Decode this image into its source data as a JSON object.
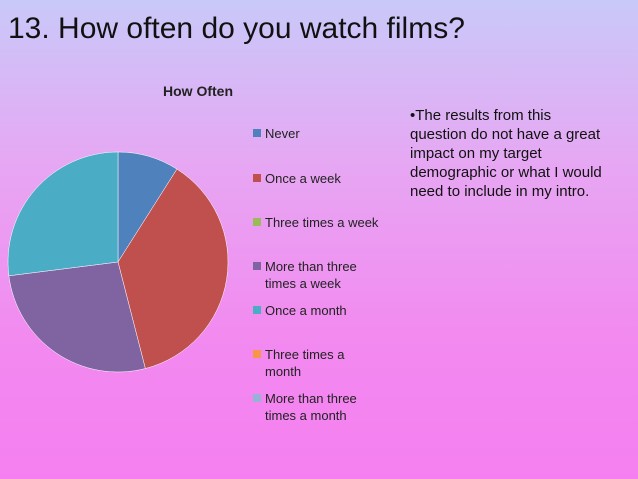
{
  "slide_title": "13. How often do you watch films?",
  "note": "•The results from this question do not have a great impact on my target demographic or what I would need to include in my intro.",
  "chart_data": {
    "type": "pie",
    "title": "How Often",
    "categories": [
      "Never",
      "Once a week",
      "Three times a week",
      "More than three times a week",
      "Once a month",
      "Three times a month",
      "More than three times a month"
    ],
    "values": [
      9,
      37,
      0,
      27,
      27,
      0,
      0
    ],
    "colors": [
      "#4f81bd",
      "#c0504d",
      "#9bbb59",
      "#8064a2",
      "#4bacc6",
      "#f79646",
      "#95b3d7"
    ],
    "legend": "right"
  }
}
